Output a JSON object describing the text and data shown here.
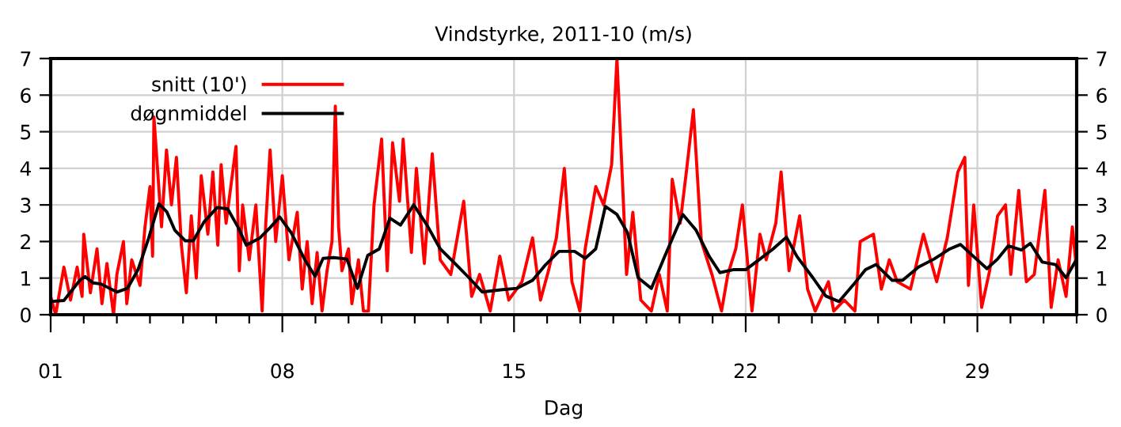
{
  "chart_data": {
    "type": "line",
    "title": "Vindstyrke, 2011-10 (m/s)",
    "xlabel": "Dag",
    "xlim": [
      1,
      32
    ],
    "ylim": [
      0,
      7
    ],
    "yticks": [
      0,
      1,
      2,
      3,
      4,
      5,
      6,
      7
    ],
    "y2lim": [
      0,
      7
    ],
    "y2ticks": [
      0,
      1,
      2,
      3,
      4,
      5,
      6,
      7
    ],
    "xticks": [
      {
        "value": 1,
        "label": "01"
      },
      {
        "value": 2,
        "label": null
      },
      {
        "value": 3,
        "label": null
      },
      {
        "value": 4,
        "label": null
      },
      {
        "value": 5,
        "label": null
      },
      {
        "value": 6,
        "label": null
      },
      {
        "value": 7,
        "label": null
      },
      {
        "value": 8,
        "label": "08"
      },
      {
        "value": 9,
        "label": null
      },
      {
        "value": 10,
        "label": null
      },
      {
        "value": 11,
        "label": null
      },
      {
        "value": 12,
        "label": null
      },
      {
        "value": 13,
        "label": null
      },
      {
        "value": 14,
        "label": null
      },
      {
        "value": 15,
        "label": "15"
      },
      {
        "value": 16,
        "label": null
      },
      {
        "value": 17,
        "label": null
      },
      {
        "value": 18,
        "label": null
      },
      {
        "value": 19,
        "label": null
      },
      {
        "value": 20,
        "label": null
      },
      {
        "value": 21,
        "label": null
      },
      {
        "value": 22,
        "label": "22"
      },
      {
        "value": 23,
        "label": null
      },
      {
        "value": 24,
        "label": null
      },
      {
        "value": 25,
        "label": null
      },
      {
        "value": 26,
        "label": null
      },
      {
        "value": 27,
        "label": null
      },
      {
        "value": 28,
        "label": null
      },
      {
        "value": 29,
        "label": "29"
      },
      {
        "value": 30,
        "label": null
      },
      {
        "value": 31,
        "label": null
      },
      {
        "value": 32,
        "label": null
      }
    ],
    "grid": true,
    "legend": "top left",
    "marker": "none",
    "line_style": "solid",
    "series": [
      {
        "name": "snitt (10')",
        "color": "#ff0000",
        "x": [
          1.0,
          1.15,
          1.4,
          1.6,
          1.8,
          1.95,
          2.0,
          2.2,
          2.4,
          2.55,
          2.7,
          2.9,
          3.0,
          3.2,
          3.3,
          3.45,
          3.7,
          3.85,
          4.0,
          4.08,
          4.12,
          4.35,
          4.5,
          4.65,
          4.8,
          4.95,
          5.1,
          5.25,
          5.4,
          5.55,
          5.75,
          5.9,
          6.05,
          6.15,
          6.3,
          6.6,
          6.7,
          6.8,
          7.0,
          7.2,
          7.39,
          7.5,
          7.63,
          7.8,
          8.0,
          8.2,
          8.45,
          8.6,
          8.75,
          8.9,
          9.05,
          9.2,
          9.35,
          9.5,
          9.6,
          9.7,
          9.8,
          10.0,
          10.1,
          10.3,
          10.45,
          10.6,
          10.77,
          11.0,
          11.17,
          11.33,
          11.54,
          11.65,
          11.9,
          12.05,
          12.29,
          12.53,
          12.77,
          13.09,
          13.48,
          13.72,
          13.96,
          14.28,
          14.57,
          14.84,
          15.24,
          15.56,
          15.8,
          16.04,
          16.28,
          16.52,
          16.75,
          16.99,
          17.15,
          17.47,
          17.71,
          17.95,
          18.11,
          18.24,
          18.4,
          18.59,
          18.83,
          19.15,
          19.39,
          19.63,
          19.78,
          20.02,
          20.22,
          20.42,
          20.66,
          20.98,
          21.27,
          21.46,
          21.7,
          21.9,
          22.19,
          22.43,
          22.62,
          22.91,
          23.07,
          23.31,
          23.63,
          23.87,
          24.1,
          24.5,
          24.66,
          24.98,
          25.3,
          25.46,
          25.86,
          26.1,
          26.34,
          26.58,
          26.98,
          27.37,
          27.77,
          28.09,
          28.41,
          28.62,
          28.73,
          28.89,
          29.13,
          29.37,
          29.61,
          29.85,
          30.01,
          30.25,
          30.48,
          30.72,
          31.04,
          31.23,
          31.44,
          31.68,
          31.87,
          32.0
        ],
        "values": [
          0.5,
          0.0,
          1.3,
          0.4,
          1.3,
          0.5,
          2.2,
          0.6,
          1.8,
          0.3,
          1.4,
          0.0,
          1.1,
          2.0,
          0.3,
          1.5,
          0.8,
          2.4,
          3.5,
          1.6,
          5.4,
          2.4,
          4.5,
          3.0,
          4.3,
          1.9,
          0.6,
          2.7,
          1.0,
          3.8,
          2.2,
          3.9,
          1.9,
          4.1,
          2.5,
          4.6,
          1.2,
          3.0,
          1.5,
          3.0,
          0.1,
          2.5,
          4.5,
          2.0,
          3.8,
          1.5,
          2.8,
          0.7,
          2.0,
          0.3,
          1.7,
          0.1,
          1.2,
          2.0,
          5.7,
          2.4,
          1.2,
          1.8,
          0.3,
          1.5,
          0.1,
          0.1,
          3.0,
          4.8,
          1.2,
          4.7,
          3.1,
          4.8,
          1.7,
          4.0,
          1.4,
          4.4,
          1.5,
          1.1,
          3.1,
          0.5,
          1.1,
          0.1,
          1.6,
          0.4,
          0.9,
          2.1,
          0.4,
          1.2,
          2.1,
          4.0,
          0.9,
          0.1,
          1.8,
          3.5,
          3.0,
          4.1,
          7.0,
          4.4,
          1.1,
          2.8,
          0.4,
          0.1,
          1.1,
          0.1,
          3.7,
          2.5,
          4.0,
          5.6,
          2.0,
          1.1,
          0.1,
          1.1,
          1.8,
          3.0,
          0.1,
          2.2,
          1.5,
          2.5,
          3.9,
          1.2,
          2.7,
          0.7,
          0.1,
          0.9,
          0.1,
          0.4,
          0.1,
          2.0,
          2.2,
          0.7,
          1.5,
          0.9,
          0.7,
          2.2,
          0.9,
          2.1,
          3.9,
          4.3,
          0.8,
          3.0,
          0.2,
          1.2,
          2.7,
          3.0,
          1.1,
          3.4,
          0.9,
          1.1,
          3.4,
          0.2,
          1.5,
          0.5,
          2.4,
          1.2
        ]
      },
      {
        "name": "døgnmiddel",
        "color": "#000000",
        "x": [
          1.0,
          1.4,
          1.88,
          2.04,
          2.28,
          2.52,
          3.0,
          3.32,
          3.64,
          3.96,
          4.27,
          4.51,
          4.75,
          5.07,
          5.31,
          5.63,
          6.03,
          6.35,
          6.67,
          6.91,
          7.31,
          7.63,
          7.92,
          8.27,
          8.67,
          8.99,
          9.23,
          9.55,
          9.95,
          10.27,
          10.58,
          10.93,
          11.25,
          11.57,
          11.97,
          12.37,
          12.77,
          13.25,
          13.64,
          14.04,
          14.6,
          15.08,
          15.56,
          15.96,
          16.36,
          16.83,
          17.15,
          17.47,
          17.76,
          18.11,
          18.43,
          18.75,
          19.15,
          19.55,
          19.86,
          20.1,
          20.5,
          20.9,
          21.22,
          21.62,
          22.0,
          22.43,
          22.83,
          23.23,
          23.55,
          24.03,
          24.42,
          24.82,
          25.3,
          25.62,
          25.94,
          26.42,
          26.74,
          27.22,
          27.69,
          28.17,
          28.49,
          28.97,
          29.29,
          29.61,
          29.93,
          30.33,
          30.6,
          30.96,
          31.36,
          31.68,
          32.0
        ],
        "values": [
          0.36,
          0.39,
          0.94,
          1.04,
          0.87,
          0.84,
          0.62,
          0.72,
          1.23,
          2.09,
          3.03,
          2.81,
          2.31,
          2.02,
          2.02,
          2.53,
          2.93,
          2.89,
          2.38,
          1.9,
          2.09,
          2.38,
          2.67,
          2.24,
          1.52,
          1.05,
          1.54,
          1.56,
          1.52,
          0.72,
          1.62,
          1.8,
          2.64,
          2.45,
          3.0,
          2.45,
          1.8,
          1.37,
          1.01,
          0.62,
          0.68,
          0.72,
          0.94,
          1.37,
          1.73,
          1.73,
          1.54,
          1.8,
          2.96,
          2.74,
          2.24,
          1.01,
          0.72,
          1.59,
          2.24,
          2.74,
          2.31,
          1.59,
          1.15,
          1.23,
          1.23,
          1.52,
          1.8,
          2.12,
          1.59,
          1.01,
          0.51,
          0.36,
          0.87,
          1.23,
          1.37,
          0.94,
          0.94,
          1.3,
          1.52,
          1.8,
          1.92,
          1.52,
          1.26,
          1.52,
          1.88,
          1.77,
          1.95,
          1.44,
          1.37,
          1.01,
          1.52
        ]
      }
    ]
  }
}
